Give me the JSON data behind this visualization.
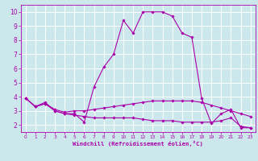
{
  "title": "",
  "xlabel": "Windchill (Refroidissement éolien,°C)",
  "ylabel": "",
  "bg_color": "#cce8ec",
  "grid_color": "#ffffff",
  "line_color": "#aa00aa",
  "xlim": [
    -0.5,
    23.5
  ],
  "ylim": [
    1.5,
    10.5
  ],
  "xticks": [
    0,
    1,
    2,
    3,
    4,
    5,
    6,
    7,
    8,
    9,
    10,
    11,
    12,
    13,
    14,
    15,
    16,
    17,
    18,
    19,
    20,
    21,
    22,
    23
  ],
  "yticks": [
    2,
    3,
    4,
    5,
    6,
    7,
    8,
    9,
    10
  ],
  "series1_x": [
    0,
    1,
    2,
    3,
    4,
    5,
    6,
    7,
    8,
    9,
    10,
    11,
    12,
    13,
    14,
    15,
    16,
    17,
    18,
    19,
    20,
    21,
    22,
    23
  ],
  "series1_y": [
    3.9,
    3.3,
    3.6,
    3.0,
    2.8,
    2.8,
    2.2,
    4.7,
    6.1,
    7.0,
    9.4,
    8.5,
    10.0,
    10.0,
    10.0,
    9.7,
    8.5,
    8.2,
    3.9,
    2.1,
    2.8,
    3.1,
    1.8,
    1.8
  ],
  "series2_x": [
    0,
    1,
    2,
    3,
    4,
    5,
    6,
    7,
    8,
    9,
    10,
    11,
    12,
    13,
    14,
    15,
    16,
    17,
    18,
    19,
    20,
    21,
    22,
    23
  ],
  "series2_y": [
    3.9,
    3.3,
    3.5,
    3.1,
    2.9,
    3.0,
    3.0,
    3.1,
    3.2,
    3.3,
    3.4,
    3.5,
    3.6,
    3.7,
    3.7,
    3.7,
    3.7,
    3.7,
    3.6,
    3.4,
    3.2,
    3.0,
    2.8,
    2.6
  ],
  "series3_x": [
    0,
    1,
    2,
    3,
    4,
    5,
    6,
    7,
    8,
    9,
    10,
    11,
    12,
    13,
    14,
    15,
    16,
    17,
    18,
    19,
    20,
    21,
    22,
    23
  ],
  "series3_y": [
    3.9,
    3.3,
    3.5,
    3.0,
    2.8,
    2.7,
    2.6,
    2.5,
    2.5,
    2.5,
    2.5,
    2.5,
    2.4,
    2.3,
    2.3,
    2.3,
    2.2,
    2.2,
    2.2,
    2.2,
    2.3,
    2.5,
    1.9,
    1.8
  ],
  "marker": "D",
  "markersize": 1.8,
  "linewidth": 0.8,
  "tick_fontsize": 5.0,
  "xlabel_fontsize": 5.2
}
